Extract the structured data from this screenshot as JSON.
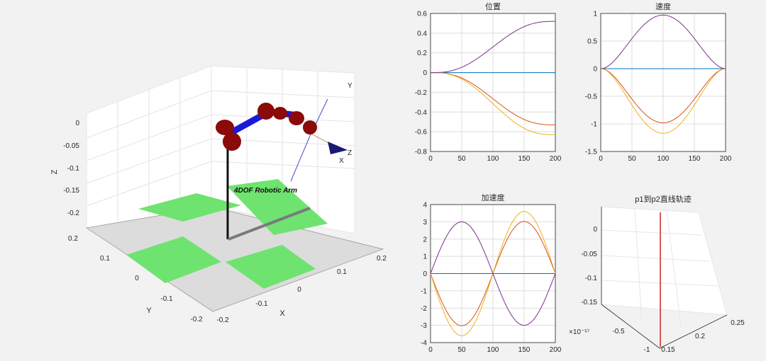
{
  "scene3d": {
    "label": "4DOF Robotic Arm",
    "xlabel": "X",
    "ylabel": "Y",
    "zlabel": "Z",
    "x_ticks": [
      "0.2",
      "0.1",
      "0",
      "-0.1",
      "-0.2"
    ],
    "y_ticks": [
      "0.2",
      "0.1",
      "0",
      "-0.1",
      "-0.2"
    ],
    "z_ticks": [
      "0",
      "-0.05",
      "-0.1",
      "-0.15",
      "-0.2"
    ],
    "frame_labels": {
      "x": "X",
      "y": "Y",
      "z": "Z"
    },
    "floor_colors": {
      "green": "#6fe36f",
      "gray": "#dcdcdc"
    },
    "link_color": "#1a1ad6",
    "joint_color": "#8b0a0a"
  },
  "chart_data": [
    {
      "type": "line",
      "title": "位置",
      "xlim": [
        0,
        200
      ],
      "ylim": [
        -0.8,
        0.6
      ],
      "x_ticks": [
        0,
        50,
        100,
        150,
        200
      ],
      "y_ticks": [
        -0.8,
        -0.6,
        -0.4,
        -0.2,
        0,
        0.2,
        0.4,
        0.6
      ],
      "series": [
        {
          "color": "#0072bd",
          "kind": "quintic",
          "amp": 0
        },
        {
          "color": "#d95319",
          "kind": "quintic",
          "amp": -0.53
        },
        {
          "color": "#edb120",
          "kind": "quintic",
          "amp": -0.63
        },
        {
          "color": "#7e2f8e",
          "kind": "quintic",
          "amp": 0.52
        }
      ]
    },
    {
      "type": "line",
      "title": "速度",
      "xlim": [
        0,
        200
      ],
      "ylim": [
        -1.5,
        1
      ],
      "x_ticks": [
        0,
        50,
        100,
        150,
        200
      ],
      "y_ticks": [
        -1.5,
        -1,
        -0.5,
        0,
        0.5,
        1
      ],
      "series": [
        {
          "color": "#0072bd",
          "kind": "bell",
          "amp": 0
        },
        {
          "color": "#d95319",
          "kind": "bell",
          "amp": -0.98
        },
        {
          "color": "#edb120",
          "kind": "bell",
          "amp": -1.17
        },
        {
          "color": "#7e2f8e",
          "kind": "bell",
          "amp": 0.97
        }
      ]
    },
    {
      "type": "line",
      "title": "加速度",
      "xlim": [
        0,
        200
      ],
      "ylim": [
        -4,
        4
      ],
      "x_ticks": [
        0,
        50,
        100,
        150,
        200
      ],
      "y_ticks": [
        -4,
        -3,
        -2,
        -1,
        0,
        1,
        2,
        3,
        4
      ],
      "series": [
        {
          "color": "#0072bd",
          "kind": "sine",
          "amp": 0
        },
        {
          "color": "#d95319",
          "kind": "sine",
          "amp": -3.02
        },
        {
          "color": "#edb120",
          "kind": "sine",
          "amp": -3.6
        },
        {
          "color": "#7e2f8e",
          "kind": "sine",
          "amp": 3.0
        }
      ]
    },
    {
      "type": "line3d",
      "title": "p1到p2直线轨迹",
      "z_ticks": [
        "0",
        "-0.05",
        "-0.1",
        "-0.15"
      ],
      "y_ticks": [
        "-0.5",
        "-1"
      ],
      "x_ticks": [
        "0.15",
        "0.2",
        "0.25"
      ],
      "exponent": "×10⁻¹⁷",
      "line_color": "#d62020"
    }
  ]
}
